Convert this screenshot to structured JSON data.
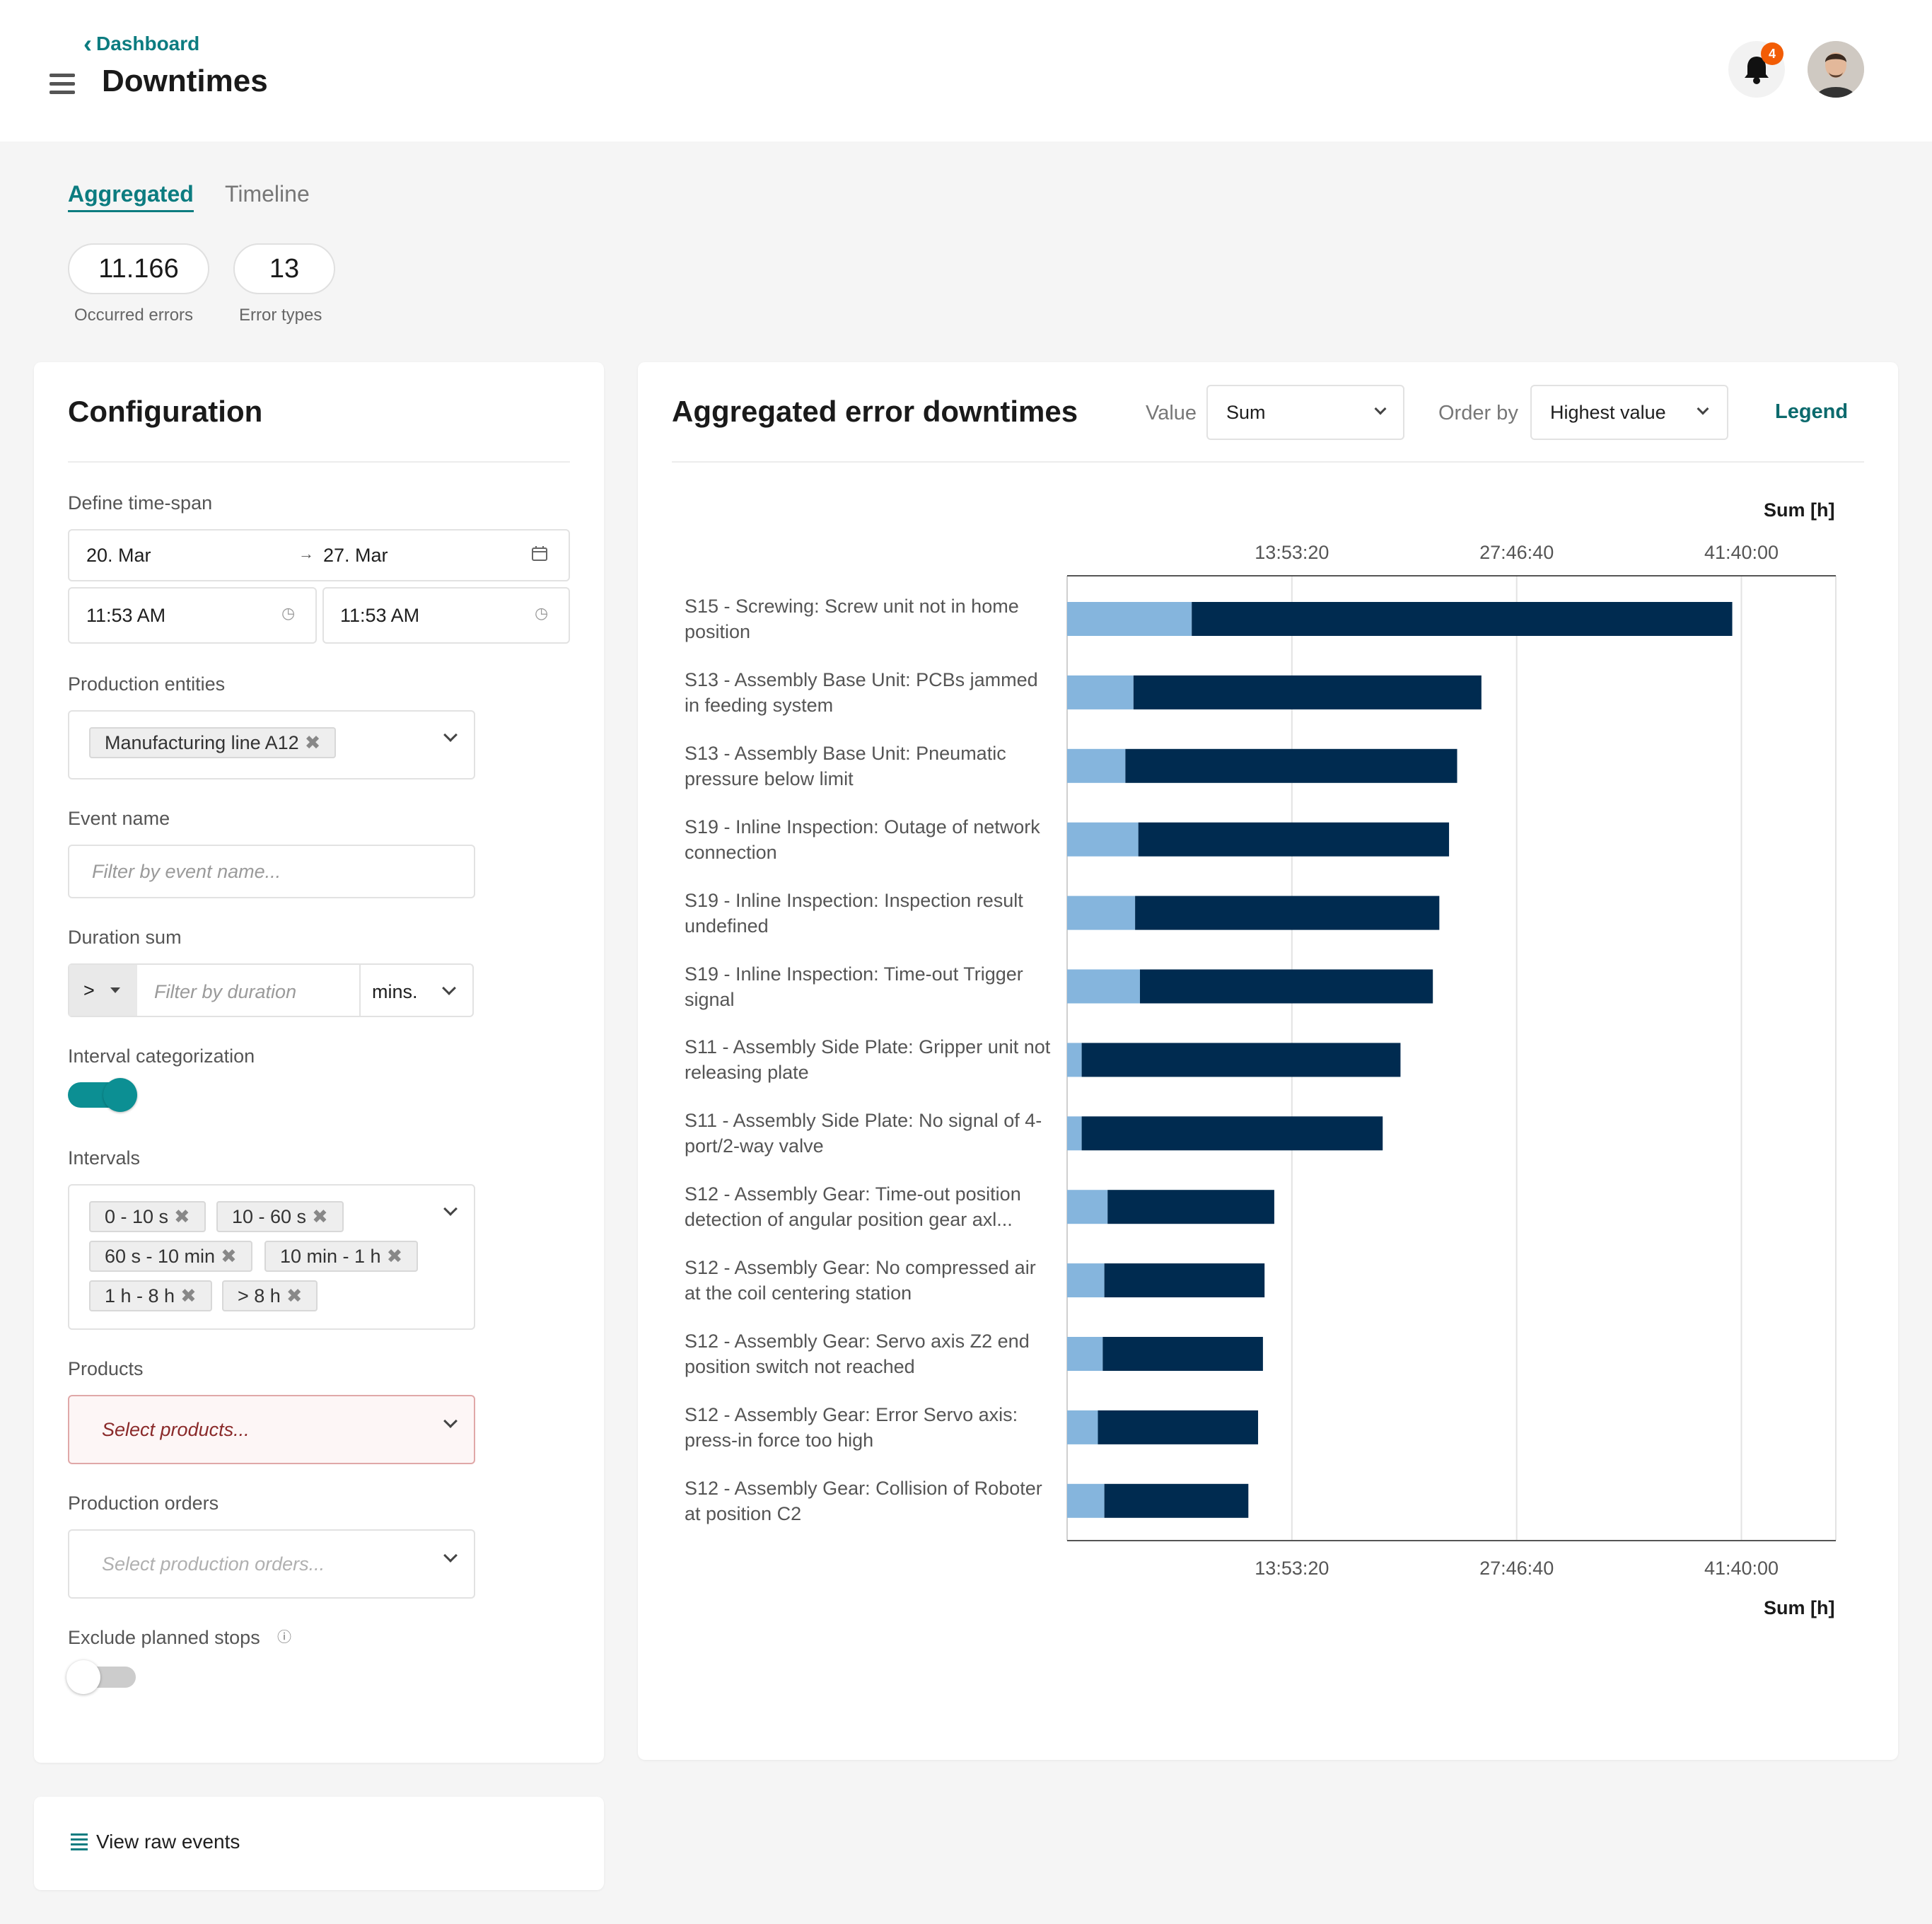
{
  "header": {
    "back_label": "Dashboard",
    "title": "Downtimes",
    "notification_count": "4"
  },
  "tabs": [
    {
      "label": "Aggregated",
      "active": true
    },
    {
      "label": "Timeline",
      "active": false
    }
  ],
  "kpis": [
    {
      "value": "11.166",
      "label": "Occurred errors"
    },
    {
      "value": "13",
      "label": "Error types"
    }
  ],
  "config": {
    "title": "Configuration",
    "timespan_label": "Define time-span",
    "date_from": "20. Mar",
    "date_to": "27. Mar",
    "time_from": "11:53 AM",
    "time_to": "11:53 AM",
    "entities_label": "Production entities",
    "entities_chips": [
      "Manufacturing line A12"
    ],
    "event_name_label": "Event name",
    "event_name_placeholder": "Filter by event name...",
    "duration_label": "Duration sum",
    "duration_operator": ">",
    "duration_placeholder": "Filter by duration",
    "duration_unit": "mins.",
    "interval_cat_label": "Interval categorization",
    "interval_cat_on": true,
    "intervals_label": "Intervals",
    "intervals": [
      "0 - 10 s",
      "10 - 60 s",
      "60 s - 10 min",
      "10 min - 1 h",
      "1 h - 8 h",
      "> 8 h"
    ],
    "products_label": "Products",
    "products_placeholder": "Select products...",
    "orders_label": "Production orders",
    "orders_placeholder": "Select production orders...",
    "exclude_label": "Exclude planned stops",
    "exclude_on": false
  },
  "raw_events_label": "View raw events",
  "chart_panel": {
    "title": "Aggregated error downtimes",
    "value_label": "Value",
    "value_selected": "Sum",
    "order_label": "Order by",
    "order_selected": "Highest value",
    "legend_label": "Legend"
  },
  "colors": {
    "accent": "#0c7c80",
    "bar_dark": "#002b50",
    "bar_light": "#85b5dd",
    "badge": "#f25c05",
    "error_border": "#e0a8a8",
    "error_bg": "#fdf6f6"
  },
  "chart_data": {
    "type": "bar",
    "orientation": "horizontal",
    "stacked": true,
    "xlabel": "Sum [h]",
    "xlim_hours": [
      0,
      47.5
    ],
    "x_ticks": [
      {
        "value_hours": 13.8889,
        "label": "13:53:20"
      },
      {
        "value_hours": 27.7778,
        "label": "27:46:40"
      },
      {
        "value_hours": 41.6667,
        "label": "41:40:00"
      }
    ],
    "grid": true,
    "categories": [
      "S15 - Screwing: Screw unit not in home position",
      "S13 - Assembly Base Unit: PCBs jammed in feeding system",
      "S13 - Assembly Base Unit: Pneumatic pressure below limit",
      "S19 - Inline Inspection: Outage of network connection",
      "S19 - Inline Inspection: Inspection result undefined",
      "S19 - Inline Inspection: Time-out Trigger signal",
      "S11 - Assembly Side Plate: Gripper unit not releasing plate",
      "S11 - Assembly Side Plate: No signal of 4-port/2-way valve",
      "S12 - Assembly Gear: Time-out position detection of angular position gear axl...",
      "S12 - Assembly Gear: No compressed air at the coil centering station",
      "S12 - Assembly Gear: Servo axis Z2 end position switch not reached",
      "S12 - Assembly Gear: Error Servo axis: press-in force too high",
      "S12 - Assembly Gear: Collision of Roboter at position C2"
    ],
    "series": [
      {
        "values": [
          7.7,
          4.1,
          3.6,
          4.4,
          4.2,
          4.5,
          0.9,
          0.9,
          2.5,
          2.3,
          2.2,
          1.9,
          2.3
        ]
      },
      {
        "values": [
          33.4,
          21.5,
          20.5,
          19.2,
          18.8,
          18.1,
          19.7,
          18.6,
          10.3,
          9.9,
          9.9,
          9.9,
          8.9
        ]
      }
    ]
  }
}
